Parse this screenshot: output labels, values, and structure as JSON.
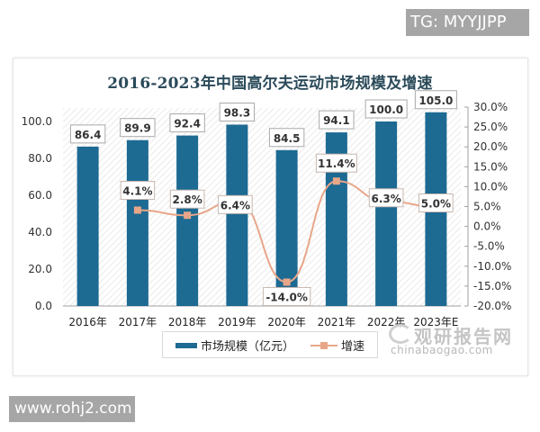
{
  "watermarks": {
    "top_right": "TG: MYYJJPP",
    "bottom_left": "www.rohj2.com"
  },
  "chart_title": "2016-2023年中国高尔夫运动市场规模及增速",
  "legend": {
    "bar_label": "市场规模（亿元）",
    "line_label": "增速"
  },
  "logo": {
    "cn": "观研报告网",
    "en": "chinabaogao.com"
  },
  "colors": {
    "bar": "#1d6a93",
    "line": "#e8a689",
    "marker": "#e8a689",
    "label_border": "#c8b8b0"
  },
  "chart_data": {
    "type": "bar",
    "title": "2016-2023年中国高尔夫运动市场规模及增速",
    "categories": [
      "2016年",
      "2017年",
      "2018年",
      "2019年",
      "2020年",
      "2021年",
      "2022年",
      "2023年E"
    ],
    "series": [
      {
        "name": "市场规模（亿元）",
        "type": "bar",
        "axis": "left",
        "values": [
          86.4,
          89.9,
          92.4,
          98.3,
          84.5,
          94.1,
          100.0,
          105.0
        ],
        "labels": [
          "86.4",
          "89.9",
          "92.4",
          "98.3",
          "84.5",
          "94.1",
          "100.0",
          "105.0"
        ]
      },
      {
        "name": "增速",
        "type": "line",
        "axis": "right",
        "values": [
          null,
          4.1,
          2.8,
          6.4,
          -14.0,
          11.4,
          6.3,
          5.0
        ],
        "labels": [
          "",
          "4.1%",
          "2.8%",
          "6.4%",
          "-14.0%",
          "11.4%",
          "6.3%",
          "5.0%"
        ]
      }
    ],
    "left_axis": {
      "ylim": [
        0,
        100
      ],
      "ticks": [
        "100.0",
        "80.0",
        "60.0",
        "40.0",
        "20.0",
        "0.0"
      ]
    },
    "right_axis": {
      "ylim": [
        -20,
        30
      ],
      "ticks": [
        "30.0%",
        "25.0%",
        "20.0%",
        "15.0%",
        "10.0%",
        "5.0%",
        "0.0%",
        "-5.0%",
        "-10.0%",
        "-15.0%",
        "-20.0%"
      ]
    },
    "xlabel": "",
    "ylabel": "",
    "legend_position": "bottom",
    "grid": false
  }
}
